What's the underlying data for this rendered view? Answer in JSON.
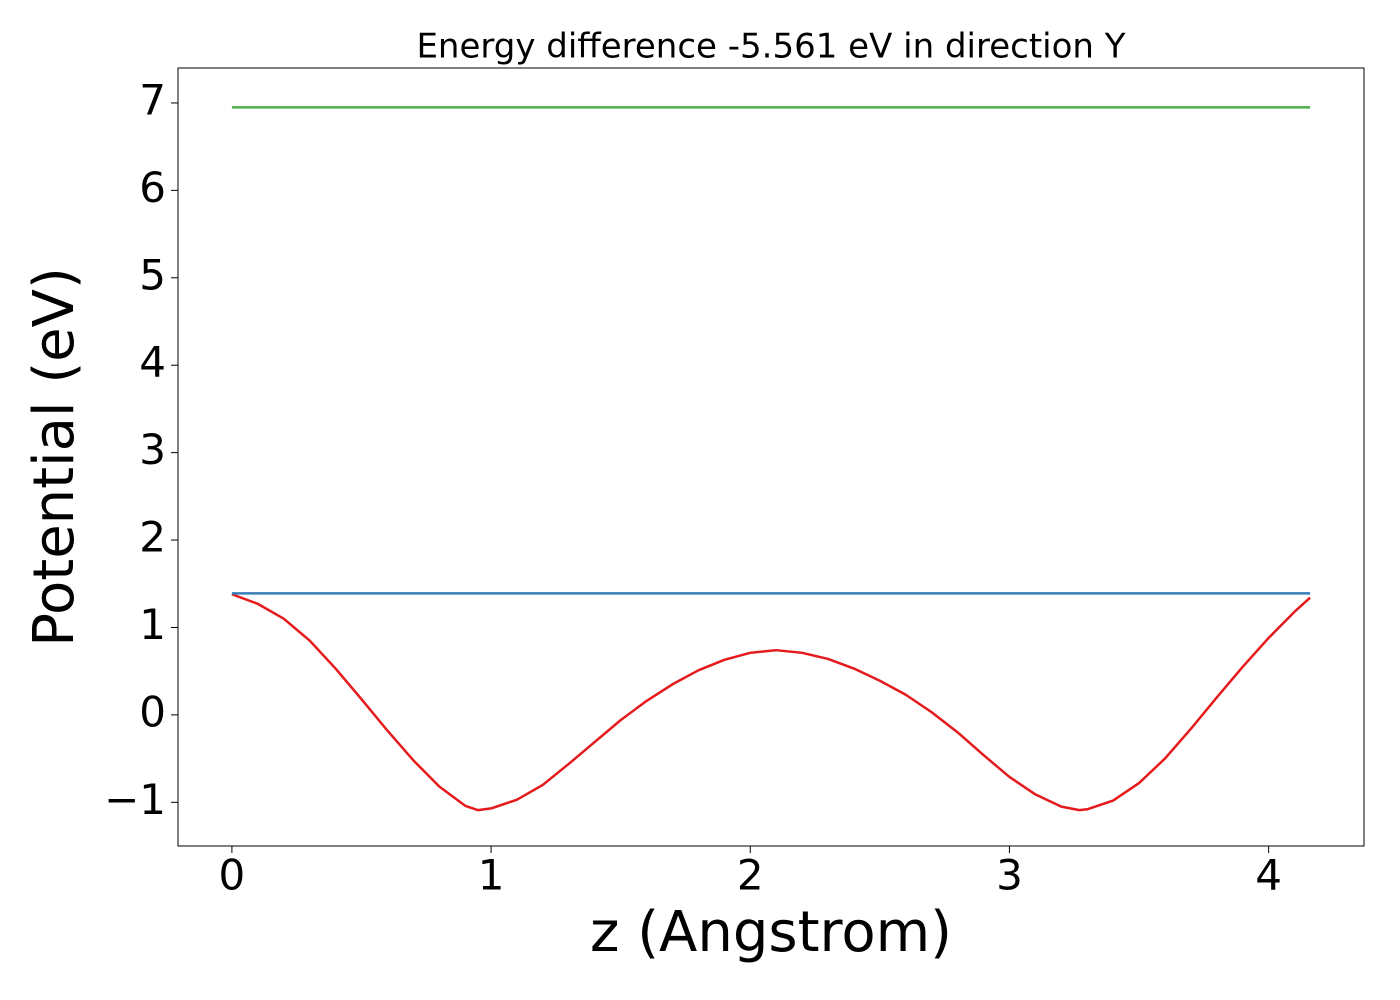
{
  "chart_data": {
    "type": "line",
    "title": "Energy difference -5.561 eV in direction Y",
    "xlabel": "z (Angstrom)",
    "ylabel": "Potential (eV)",
    "xlim": [
      -0.208,
      4.368
    ],
    "ylim": [
      -1.5,
      7.4
    ],
    "xticks": [
      0,
      1,
      2,
      3,
      4
    ],
    "yticks": [
      {
        "value": -1,
        "label": "−1"
      },
      0,
      1,
      2,
      3,
      4,
      5,
      6,
      7
    ],
    "series": [
      {
        "color": "#e41a1c",
        "x": [
          0,
          0.1,
          0.2,
          0.3,
          0.4,
          0.5,
          0.6,
          0.7,
          0.8,
          0.9,
          0.95,
          1.0,
          1.1,
          1.2,
          1.3,
          1.4,
          1.5,
          1.6,
          1.7,
          1.8,
          1.9,
          2.0,
          2.1,
          2.2,
          2.3,
          2.4,
          2.5,
          2.6,
          2.7,
          2.8,
          2.9,
          3.0,
          3.1,
          3.2,
          3.27,
          3.3,
          3.4,
          3.5,
          3.6,
          3.7,
          3.8,
          3.9,
          4.0,
          4.1,
          4.16
        ],
        "values": [
          1.38,
          1.27,
          1.1,
          0.85,
          0.53,
          0.18,
          -0.18,
          -0.52,
          -0.82,
          -1.04,
          -1.09,
          -1.07,
          -0.97,
          -0.8,
          -0.56,
          -0.31,
          -0.06,
          0.16,
          0.35,
          0.51,
          0.63,
          0.71,
          0.74,
          0.71,
          0.64,
          0.53,
          0.39,
          0.23,
          0.03,
          -0.2,
          -0.46,
          -0.71,
          -0.91,
          -1.05,
          -1.09,
          -1.08,
          -0.98,
          -0.78,
          -0.5,
          -0.16,
          0.2,
          0.55,
          0.88,
          1.18,
          1.34
        ]
      },
      {
        "color": "#377eb8",
        "x": [
          0,
          4.16
        ],
        "values": [
          1.39,
          1.39
        ]
      },
      {
        "color": "#4daf4a",
        "x": [
          0,
          4.16
        ],
        "values": [
          6.95,
          6.95
        ]
      }
    ]
  }
}
